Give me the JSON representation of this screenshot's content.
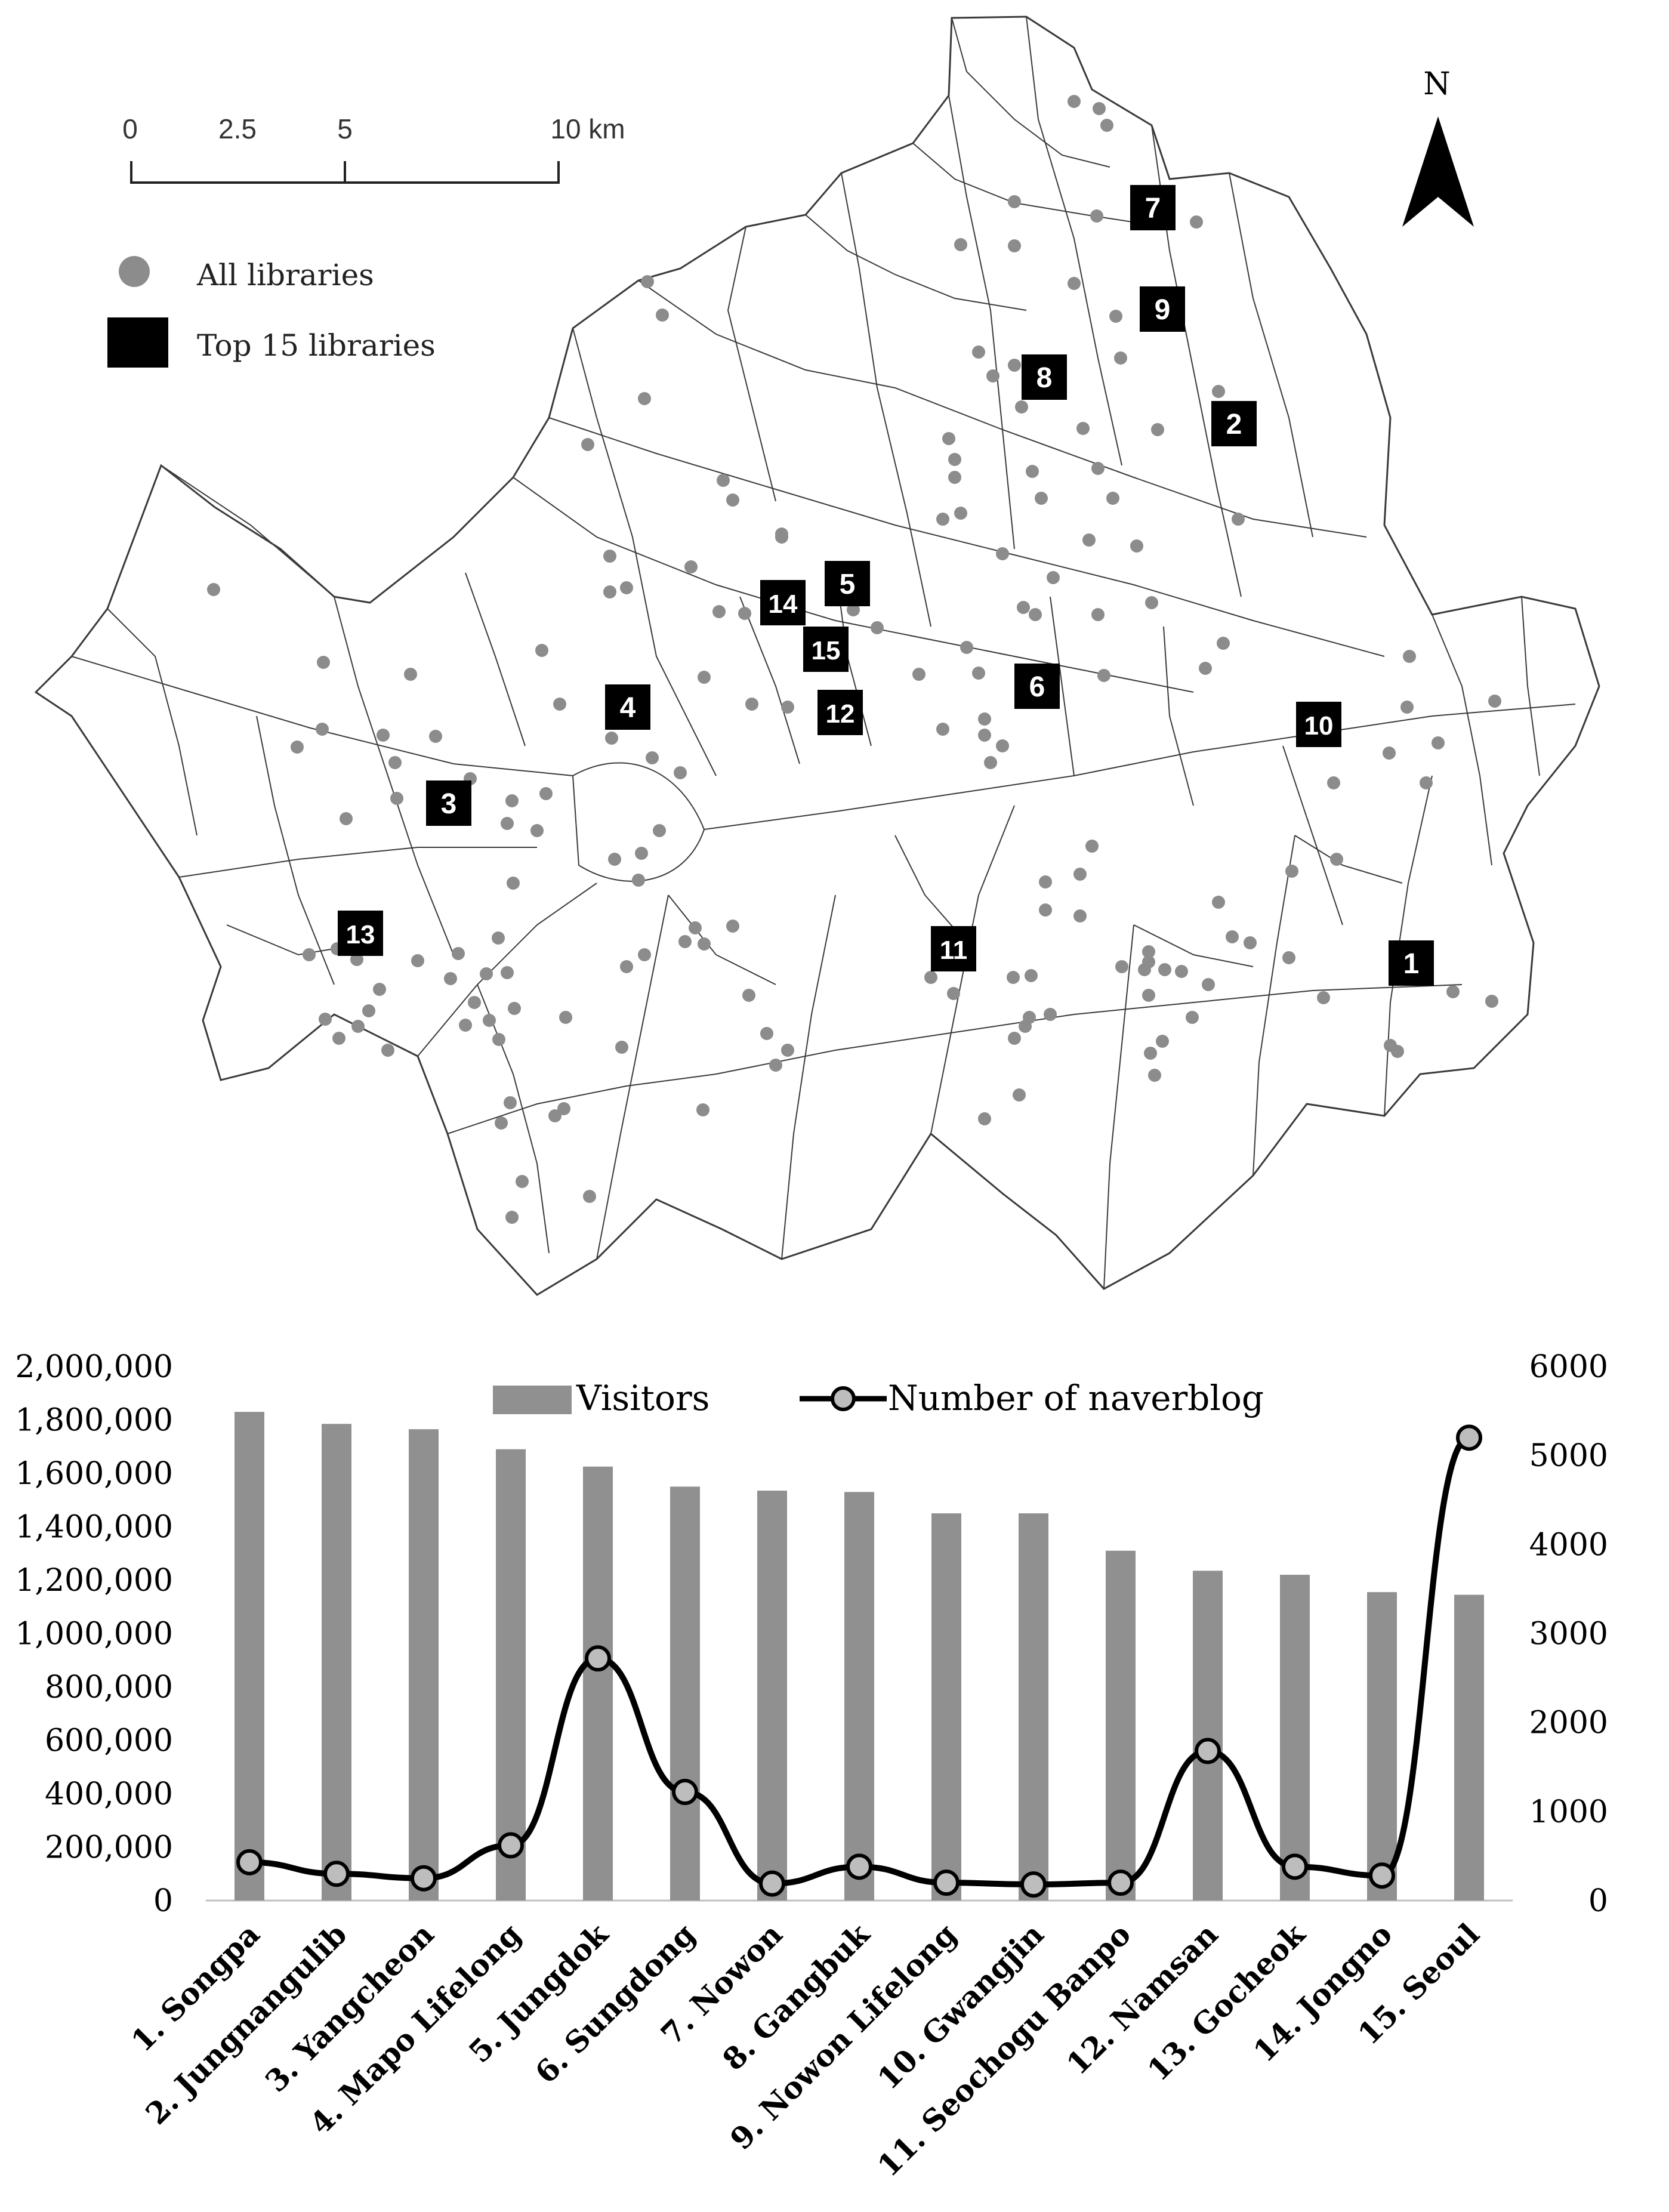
{
  "map": {
    "scale_bar": {
      "ticks": [
        "0",
        "2.5",
        "5",
        "10 km"
      ]
    },
    "north_label": "N",
    "legend": {
      "all_libraries": "All libraries",
      "top15_libraries": "Top 15 libraries"
    },
    "top_markers": [
      "1",
      "2",
      "3",
      "4",
      "5",
      "6",
      "7",
      "8",
      "9",
      "10",
      "11",
      "12",
      "13",
      "14",
      "15"
    ],
    "colors": {
      "dot": "#8c8c8c",
      "marker": "#000000",
      "boundary": "#3a3a3a"
    }
  },
  "chart_data": {
    "type": "bar",
    "categories": [
      "1. Songpa",
      "2. Jungnangulib",
      "3. Yangcheon",
      "4. Mapo Lifelong",
      "5. Jungdok",
      "6. Sungdong",
      "7. Nowon",
      "8. Gangbuk",
      "9. Nowon Lifelong",
      "10. Gwangjin",
      "11. Seochogu Banpo",
      "12. Namsan",
      "13. Gocheok",
      "14. Jongno",
      "15. Seoul"
    ],
    "series": [
      {
        "name": "Visitors",
        "type": "bar",
        "axis": "left",
        "color": "#909090",
        "values": [
          1830000,
          1785000,
          1765000,
          1690000,
          1625000,
          1550000,
          1535000,
          1530000,
          1450000,
          1450000,
          1310000,
          1235000,
          1220000,
          1155000,
          1145000
        ]
      },
      {
        "name": "Number of naverblog",
        "type": "line",
        "axis": "right",
        "color": "#000000",
        "values": [
          430,
          300,
          250,
          620,
          2720,
          1220,
          190,
          380,
          200,
          180,
          200,
          1680,
          380,
          280,
          5200
        ]
      }
    ],
    "y_left": {
      "min": 0,
      "max": 2000000,
      "ticks": [
        "0",
        "200,000",
        "400,000",
        "600,000",
        "800,000",
        "1,000,000",
        "1,200,000",
        "1,400,000",
        "1,600,000",
        "1,800,000",
        "2,000,000"
      ]
    },
    "y_right": {
      "min": 0,
      "max": 6000,
      "ticks": [
        "0",
        "1000",
        "2000",
        "3000",
        "4000",
        "5000",
        "6000"
      ]
    },
    "legend_position": "top-center",
    "grid": false
  }
}
